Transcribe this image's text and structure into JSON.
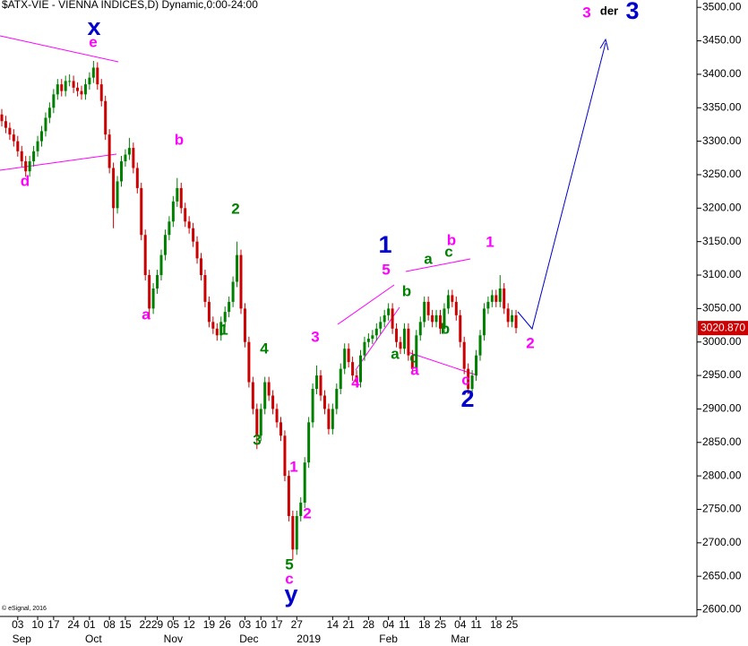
{
  "chart_data": {
    "type": "candlestick",
    "title": "$ATX-VIE - VIENNA INDICES,D) Dynamic,0:00-24:00",
    "credit": "© eSignal, 2016",
    "up_color": "#008000",
    "down_color": "#cc0000",
    "ohlc": [
      [
        3340,
        3348,
        3322,
        3330
      ],
      [
        3330,
        3338,
        3312,
        3320
      ],
      [
        3320,
        3328,
        3302,
        3310
      ],
      [
        3310,
        3318,
        3292,
        3300
      ],
      [
        3300,
        3308,
        3277,
        3285
      ],
      [
        3285,
        3293,
        3262,
        3270
      ],
      [
        3270,
        3278,
        3247,
        3255
      ],
      [
        3255,
        3278,
        3247,
        3270
      ],
      [
        3270,
        3293,
        3262,
        3285
      ],
      [
        3285,
        3308,
        3277,
        3300
      ],
      [
        3300,
        3323,
        3292,
        3315
      ],
      [
        3315,
        3343,
        3307,
        3335
      ],
      [
        3335,
        3358,
        3327,
        3350
      ],
      [
        3350,
        3378,
        3342,
        3370
      ],
      [
        3370,
        3393,
        3362,
        3385
      ],
      [
        3385,
        3393,
        3367,
        3375
      ],
      [
        3375,
        3398,
        3367,
        3390
      ],
      [
        3390,
        3400,
        3382,
        3390
      ],
      [
        3390,
        3398,
        3372,
        3380
      ],
      [
        3380,
        3388,
        3367,
        3375
      ],
      [
        3375,
        3383,
        3362,
        3370
      ],
      [
        3370,
        3393,
        3362,
        3385
      ],
      [
        3385,
        3403,
        3377,
        3395
      ],
      [
        3395,
        3420,
        3387,
        3410
      ],
      [
        3410,
        3418,
        3377,
        3385
      ],
      [
        3385,
        3393,
        3352,
        3360
      ],
      [
        3360,
        3368,
        3302,
        3310
      ],
      [
        3310,
        3318,
        3252,
        3260
      ],
      [
        3260,
        3268,
        3170,
        3200
      ],
      [
        3200,
        3248,
        3192,
        3240
      ],
      [
        3240,
        3278,
        3232,
        3270
      ],
      [
        3270,
        3288,
        3262,
        3280
      ],
      [
        3280,
        3305,
        3272,
        3290
      ],
      [
        3290,
        3298,
        3252,
        3260
      ],
      [
        3260,
        3268,
        3222,
        3230
      ],
      [
        3230,
        3238,
        3152,
        3160
      ],
      [
        3160,
        3168,
        3092,
        3100
      ],
      [
        3100,
        3108,
        3035,
        3050
      ],
      [
        3050,
        3088,
        3042,
        3080
      ],
      [
        3080,
        3108,
        3072,
        3100
      ],
      [
        3100,
        3138,
        3092,
        3130
      ],
      [
        3130,
        3168,
        3122,
        3160
      ],
      [
        3160,
        3188,
        3152,
        3180
      ],
      [
        3180,
        3218,
        3172,
        3210
      ],
      [
        3210,
        3245,
        3202,
        3230
      ],
      [
        3230,
        3238,
        3192,
        3200
      ],
      [
        3200,
        3208,
        3172,
        3180
      ],
      [
        3180,
        3188,
        3162,
        3170
      ],
      [
        3170,
        3178,
        3142,
        3150
      ],
      [
        3150,
        3158,
        3117,
        3125
      ],
      [
        3125,
        3133,
        3092,
        3100
      ],
      [
        3100,
        3108,
        3052,
        3060
      ],
      [
        3060,
        3068,
        3022,
        3030
      ],
      [
        3030,
        3038,
        3012,
        3020
      ],
      [
        3020,
        3028,
        3002,
        3010
      ],
      [
        3010,
        3038,
        3002,
        3030
      ],
      [
        3030,
        3053,
        3022,
        3045
      ],
      [
        3045,
        3068,
        3037,
        3060
      ],
      [
        3060,
        3098,
        3052,
        3090
      ],
      [
        3090,
        3150,
        3082,
        3130
      ],
      [
        3130,
        3138,
        3042,
        3050
      ],
      [
        3050,
        3058,
        2992,
        3000
      ],
      [
        3000,
        3008,
        2932,
        2940
      ],
      [
        2940,
        2948,
        2892,
        2900
      ],
      [
        2900,
        2908,
        2840,
        2860
      ],
      [
        2860,
        2908,
        2852,
        2900
      ],
      [
        2900,
        2948,
        2892,
        2940
      ],
      [
        2940,
        2948,
        2912,
        2920
      ],
      [
        2920,
        2928,
        2892,
        2900
      ],
      [
        2900,
        2908,
        2872,
        2880
      ],
      [
        2880,
        2888,
        2852,
        2860
      ],
      [
        2860,
        2868,
        2792,
        2800
      ],
      [
        2800,
        2808,
        2732,
        2740
      ],
      [
        2740,
        2748,
        2675,
        2690
      ],
      [
        2690,
        2748,
        2682,
        2740
      ],
      [
        2740,
        2768,
        2732,
        2760
      ],
      [
        2760,
        2828,
        2752,
        2820
      ],
      [
        2820,
        2888,
        2812,
        2880
      ],
      [
        2880,
        2938,
        2872,
        2930
      ],
      [
        2930,
        2965,
        2922,
        2950
      ],
      [
        2950,
        2958,
        2912,
        2920
      ],
      [
        2920,
        2928,
        2892,
        2900
      ],
      [
        2900,
        2908,
        2862,
        2870
      ],
      [
        2870,
        2908,
        2862,
        2900
      ],
      [
        2900,
        2938,
        2892,
        2930
      ],
      [
        2930,
        2968,
        2922,
        2960
      ],
      [
        2960,
        2998,
        2952,
        2990
      ],
      [
        2990,
        2998,
        2962,
        2970
      ],
      [
        2970,
        2978,
        2942,
        2950
      ],
      [
        2950,
        2958,
        2932,
        2940
      ],
      [
        2940,
        2988,
        2932,
        2980
      ],
      [
        2980,
        3008,
        2972,
        3000
      ],
      [
        3000,
        3013,
        2992,
        3005
      ],
      [
        3005,
        3018,
        2997,
        3010
      ],
      [
        3010,
        3028,
        3002,
        3020
      ],
      [
        3020,
        3038,
        3012,
        3030
      ],
      [
        3030,
        3048,
        3022,
        3040
      ],
      [
        3040,
        3058,
        3032,
        3050
      ],
      [
        3050,
        3058,
        3012,
        3020
      ],
      [
        3020,
        3028,
        2992,
        3000
      ],
      [
        3000,
        3008,
        2982,
        2990
      ],
      [
        2990,
        3028,
        2982,
        3020
      ],
      [
        3020,
        3028,
        2972,
        2980
      ],
      [
        2980,
        2988,
        2952,
        2960
      ],
      [
        2960,
        3018,
        2952,
        3010
      ],
      [
        3010,
        3038,
        3002,
        3030
      ],
      [
        3030,
        3068,
        3022,
        3060
      ],
      [
        3060,
        3068,
        3032,
        3040
      ],
      [
        3040,
        3048,
        3022,
        3030
      ],
      [
        3030,
        3048,
        3022,
        3040
      ],
      [
        3040,
        3048,
        3012,
        3020
      ],
      [
        3020,
        3058,
        3012,
        3050
      ],
      [
        3050,
        3078,
        3042,
        3070
      ],
      [
        3070,
        3078,
        3052,
        3060
      ],
      [
        3060,
        3068,
        3032,
        3040
      ],
      [
        3040,
        3048,
        2992,
        3000
      ],
      [
        3000,
        3008,
        2952,
        2960
      ],
      [
        2960,
        2968,
        2922,
        2930
      ],
      [
        2930,
        2958,
        2922,
        2950
      ],
      [
        2950,
        2988,
        2942,
        2980
      ],
      [
        2980,
        3018,
        2972,
        3010
      ],
      [
        3010,
        3058,
        3002,
        3050
      ],
      [
        3050,
        3068,
        3042,
        3060
      ],
      [
        3060,
        3078,
        3052,
        3070
      ],
      [
        3070,
        3078,
        3052,
        3060
      ],
      [
        3060,
        3100,
        3052,
        3080
      ],
      [
        3080,
        3088,
        3042,
        3050
      ],
      [
        3050,
        3058,
        3022,
        3030
      ],
      [
        3030,
        3048,
        3022,
        3040
      ],
      [
        3040,
        3048,
        3013,
        3020.87
      ]
    ],
    "last_price_label": "3020.870",
    "ylim": [
      2590,
      3511
    ],
    "yticks": [
      {
        "value": 2600,
        "label": "2600.00"
      },
      {
        "value": 2650,
        "label": "2650.00"
      },
      {
        "value": 2700,
        "label": "2700.00"
      },
      {
        "value": 2750,
        "label": "2750.00"
      },
      {
        "value": 2800,
        "label": "2800.00"
      },
      {
        "value": 2850,
        "label": "2850.00"
      },
      {
        "value": 2900,
        "label": "2900.00"
      },
      {
        "value": 2950,
        "label": "2950.00"
      },
      {
        "value": 3000,
        "label": "3000.00"
      },
      {
        "value": 3050,
        "label": "3050.00"
      },
      {
        "value": 3100,
        "label": "3100.00"
      },
      {
        "value": 3150,
        "label": "3150.00"
      },
      {
        "value": 3200,
        "label": "3200.00"
      },
      {
        "value": 3250,
        "label": "3250.00"
      },
      {
        "value": 3300,
        "label": "3300.00"
      },
      {
        "value": 3350,
        "label": "3350.00"
      },
      {
        "value": 3400,
        "label": "3400.00"
      },
      {
        "value": 3450,
        "label": "3450.00"
      },
      {
        "value": 3500,
        "label": "3500.00"
      }
    ],
    "xticks": [
      {
        "value": 4,
        "label": "03"
      },
      {
        "value": 9,
        "label": "10"
      },
      {
        "value": 13,
        "label": "17"
      },
      {
        "value": 18,
        "label": "24"
      },
      {
        "value": 22,
        "label": "01"
      },
      {
        "value": 27,
        "label": "08"
      },
      {
        "value": 31,
        "label": "15"
      },
      {
        "value": 36,
        "label": "22"
      },
      {
        "value": 39,
        "label": "29"
      },
      {
        "value": 43,
        "label": "05"
      },
      {
        "value": 47,
        "label": "12"
      },
      {
        "value": 52,
        "label": "19"
      },
      {
        "value": 56,
        "label": "26"
      },
      {
        "value": 61,
        "label": "03"
      },
      {
        "value": 65,
        "label": "10"
      },
      {
        "value": 69,
        "label": "17"
      },
      {
        "value": 74,
        "label": "27"
      },
      {
        "value": 83,
        "label": "14"
      },
      {
        "value": 87,
        "label": "21"
      },
      {
        "value": 92,
        "label": "28"
      },
      {
        "value": 97,
        "label": "04"
      },
      {
        "value": 101,
        "label": "11"
      },
      {
        "value": 106,
        "label": "18"
      },
      {
        "value": 110,
        "label": "25"
      },
      {
        "value": 115,
        "label": "04"
      },
      {
        "value": 119,
        "label": "11"
      },
      {
        "value": 124,
        "label": "18"
      },
      {
        "value": 128,
        "label": "25"
      }
    ],
    "month_ticks": [
      {
        "value": 5,
        "label": "Sep"
      },
      {
        "value": 23,
        "label": "Oct"
      },
      {
        "value": 43,
        "label": "Nov"
      },
      {
        "value": 62,
        "label": "Dec"
      },
      {
        "value": 77,
        "label": "2019"
      },
      {
        "value": 97,
        "label": "Feb"
      },
      {
        "value": 115,
        "label": "Mar"
      }
    ],
    "annotations": [
      {
        "text": "x",
        "color": "#0000cc"
      },
      {
        "text": "e",
        "color": "#ff00ff"
      },
      {
        "text": "d",
        "color": "#ff00ff"
      },
      {
        "text": "b",
        "color": "#ff00ff"
      },
      {
        "text": "a",
        "color": "#ff00ff"
      },
      {
        "text": "2",
        "color": "#008000"
      },
      {
        "text": "1",
        "color": "#008000"
      },
      {
        "text": "4",
        "color": "#008000"
      },
      {
        "text": "3",
        "color": "#008000"
      },
      {
        "text": "1",
        "color": "#ff00ff"
      },
      {
        "text": "2",
        "color": "#ff00ff"
      },
      {
        "text": "5",
        "color": "#008000"
      },
      {
        "text": "c",
        "color": "#ff00ff"
      },
      {
        "text": "y",
        "color": "#0000cc"
      },
      {
        "text": "3",
        "color": "#ff00ff"
      },
      {
        "text": "4",
        "color": "#ff00ff"
      },
      {
        "text": "5",
        "color": "#ff00ff"
      },
      {
        "text": "1",
        "color": "#0000cc"
      },
      {
        "text": "b",
        "color": "#008000"
      },
      {
        "text": "a",
        "color": "#008000"
      },
      {
        "text": "c",
        "color": "#008000"
      },
      {
        "text": "a",
        "color": "#ff00ff"
      },
      {
        "text": "a",
        "color": "#008000"
      },
      {
        "text": "c",
        "color": "#008000"
      },
      {
        "text": "b",
        "color": "#ff00ff"
      },
      {
        "text": "b",
        "color": "#008000"
      },
      {
        "text": "c",
        "color": "#ff00ff"
      },
      {
        "text": "2",
        "color": "#0000cc"
      },
      {
        "text": "1",
        "color": "#ff00ff"
      },
      {
        "text": "2",
        "color": "#ff00ff"
      },
      {
        "text": "3",
        "color": "#ff00ff"
      },
      {
        "text": "der",
        "color": "#000000"
      },
      {
        "text": "3",
        "color": "#0000cc"
      }
    ]
  }
}
